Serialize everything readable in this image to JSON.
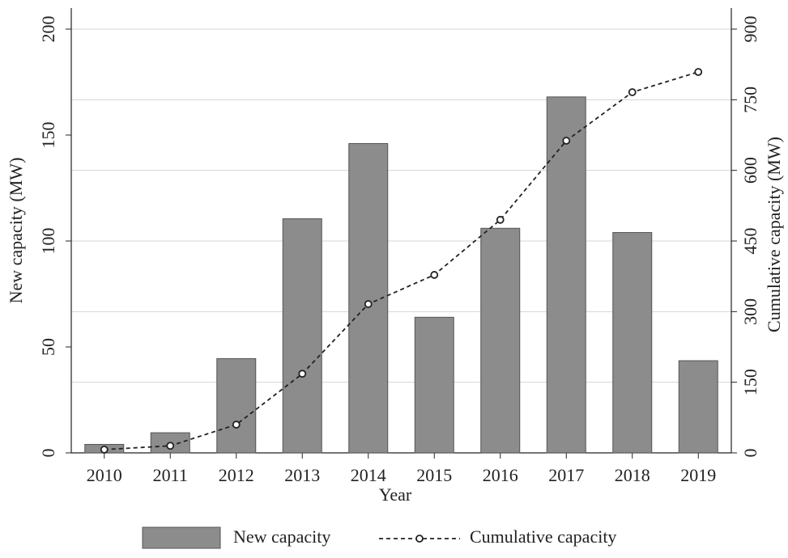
{
  "chart_data": {
    "type": "bar-line",
    "x_label": "Year",
    "y_label": "New capacity (MW)",
    "y2_label": "Cumulative capacity (MW)",
    "categories": [
      "2010",
      "2011",
      "2012",
      "2013",
      "2014",
      "2015",
      "2016",
      "2017",
      "2018",
      "2019"
    ],
    "series": [
      {
        "name": "New capacity",
        "type": "bar",
        "color": "#8c8c8c",
        "values": [
          4,
          9.5,
          44.5,
          110.5,
          146,
          64,
          106,
          168,
          104,
          43.5
        ]
      },
      {
        "name": "Cumulative capacity",
        "type": "line",
        "axis": "y2",
        "color": "#222222",
        "values": [
          7,
          15,
          60,
          168,
          316,
          378,
          495,
          663,
          766,
          809
        ]
      }
    ],
    "ylim": [
      0,
      200
    ],
    "yticks": [
      0,
      50,
      100,
      150,
      200
    ],
    "y2lim": [
      0,
      900
    ],
    "y2ticks": [
      0,
      150,
      300,
      450,
      600,
      750,
      900
    ],
    "grid": "y2",
    "legend": "bottom"
  }
}
